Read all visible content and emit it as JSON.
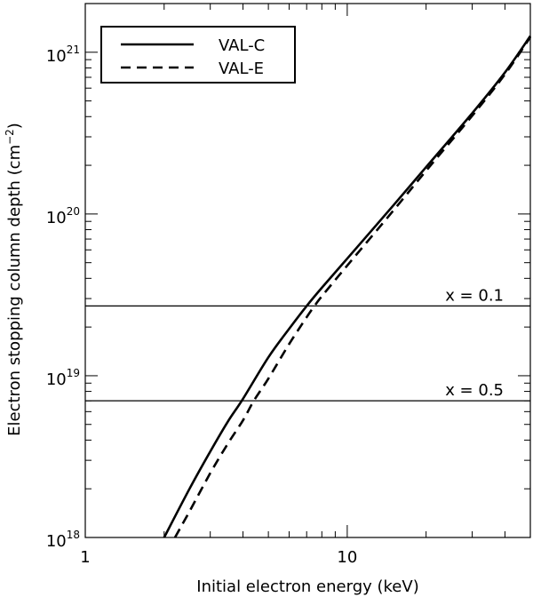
{
  "chart_data": {
    "type": "line",
    "xlabel": "Initial electron energy (keV)",
    "ylabel": "Electron stopping column depth (cm",
    "ylabel_sup": "−2",
    "ylabel_close": ")",
    "xscale": "log",
    "yscale": "log",
    "xlim": [
      1,
      50
    ],
    "ylim": [
      1e+18,
      2e+21
    ],
    "x_ticks": [
      {
        "value": 1,
        "label": "1"
      },
      {
        "value": 10,
        "label": "10"
      }
    ],
    "y_ticks": [
      {
        "value": 1e+18,
        "base": "10",
        "exp": "18"
      },
      {
        "value": 1e+19,
        "base": "10",
        "exp": "19"
      },
      {
        "value": 1e+20,
        "base": "10",
        "exp": "20"
      },
      {
        "value": 1e+21,
        "base": "10",
        "exp": "21"
      }
    ],
    "legend": {
      "position": "top-left",
      "entries": [
        {
          "label": "VAL-C",
          "style": "solid"
        },
        {
          "label": "VAL-E",
          "style": "dashed"
        }
      ]
    },
    "series": [
      {
        "name": "VAL-C",
        "style": "solid",
        "x": [
          2.0,
          2.5,
          3.0,
          3.5,
          4.0,
          5.0,
          6.0,
          7.0,
          8.0,
          10.0,
          15.0,
          20.0,
          30.0,
          40.0,
          50.0
        ],
        "y": [
          1e+18,
          2e+18,
          3.4e+18,
          5.2e+18,
          7.2e+18,
          1.3e+19,
          1.95e+19,
          2.7e+19,
          3.5e+19,
          5.3e+19,
          1.13e+20,
          1.95e+20,
          4.2e+20,
          7.5e+20,
          1.26e+21
        ]
      },
      {
        "name": "VAL-E",
        "style": "dashed",
        "x": [
          2.2,
          2.5,
          3.0,
          3.5,
          4.0,
          4.4,
          5.0,
          6.0,
          7.0,
          7.5,
          8.0,
          10.0,
          15.0,
          20.0,
          30.0,
          40.0,
          50.0
        ],
        "y": [
          1e+18,
          1.45e+18,
          2.5e+18,
          3.8e+18,
          5.3e+18,
          7e+18,
          9.6e+18,
          1.57e+19,
          2.3e+19,
          2.7e+19,
          3.1e+19,
          4.8e+19,
          1.05e+20,
          1.85e+20,
          4.05e+20,
          7.3e+20,
          1.24e+21
        ]
      }
    ],
    "reference_lines": [
      {
        "y": 2.7e+19,
        "label": "x = 0.1"
      },
      {
        "y": 7e+18,
        "label": "x = 0.5"
      }
    ]
  }
}
